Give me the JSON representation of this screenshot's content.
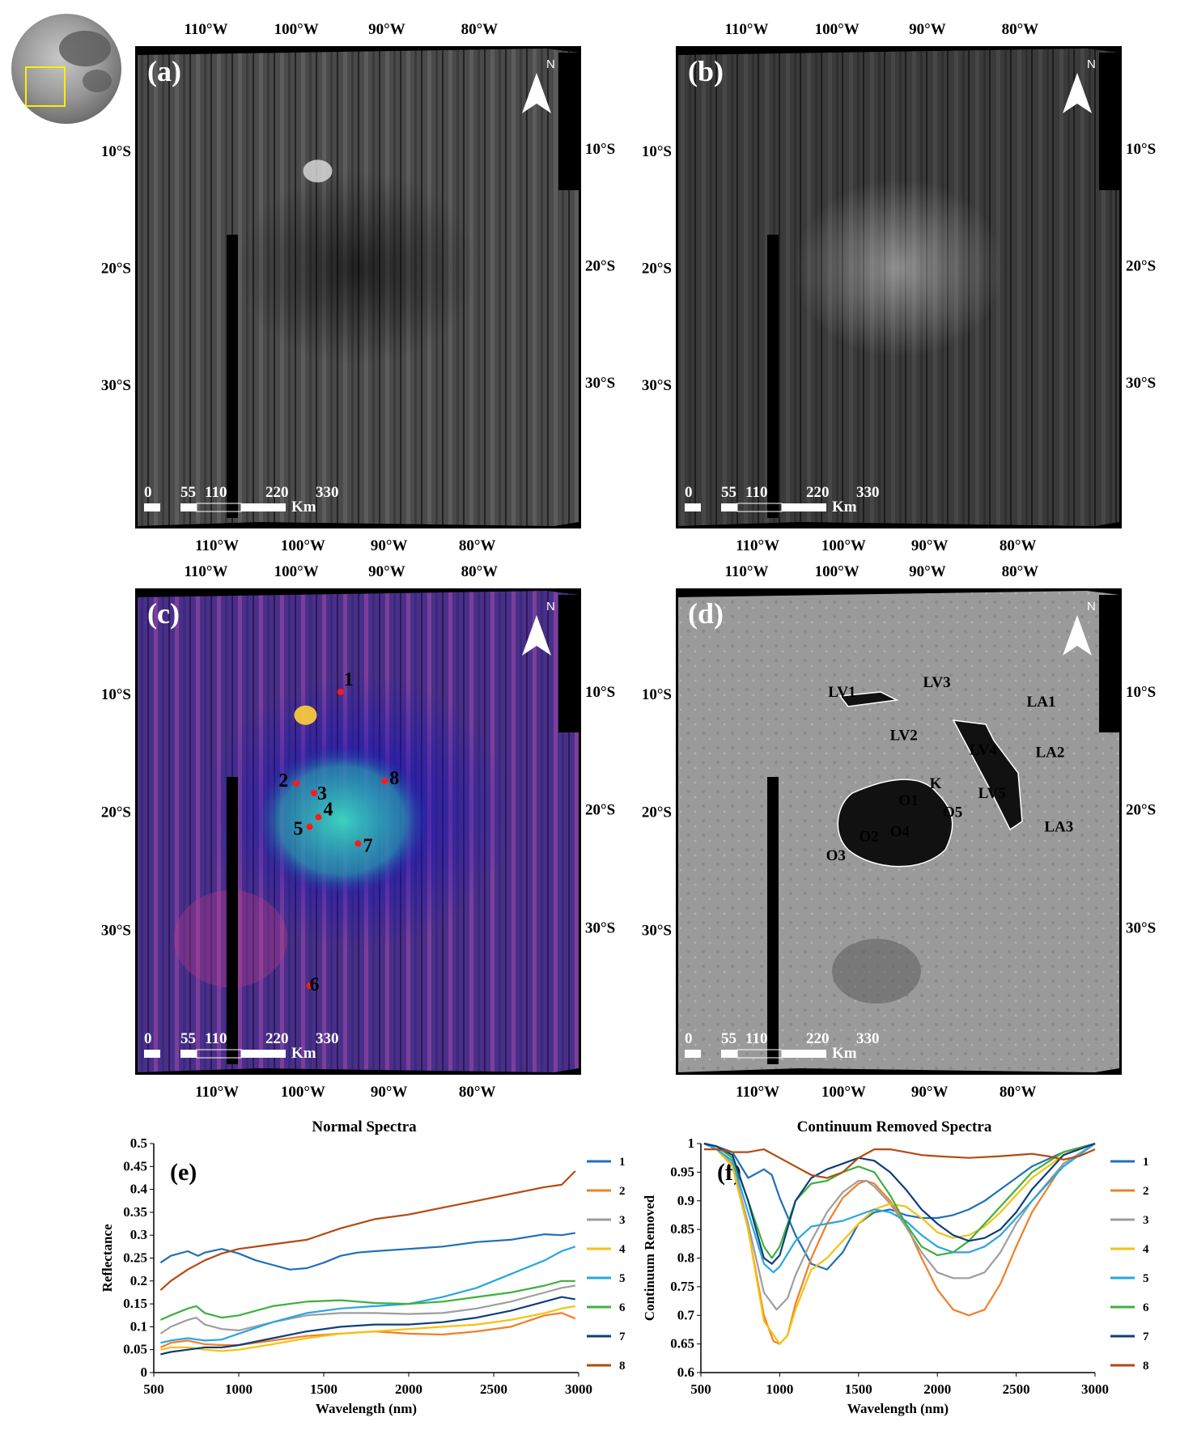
{
  "locator": {
    "colors": {
      "box": "#ffee00"
    }
  },
  "maps": [
    {
      "letter": "(a)",
      "style": "gray-dark",
      "top_ticks": [
        "110°W",
        "100°W",
        "90°W",
        "80°W"
      ],
      "bottom_ticks": [
        "110°W",
        "100°W",
        "90°W",
        "80°W"
      ],
      "lat_ticks_left": [
        "10°S",
        "20°S",
        "30°S"
      ],
      "lat_ticks_right": [
        "10°S",
        "20°S",
        "30°S"
      ],
      "north": "N",
      "scale": {
        "values": [
          "0",
          "55",
          "110",
          "220",
          "330"
        ],
        "unit": "Km"
      }
    },
    {
      "letter": "(b)",
      "style": "gray-dim",
      "top_ticks": [
        "110°W",
        "100°W",
        "90°W",
        "80°W"
      ],
      "bottom_ticks": [
        "110°W",
        "100°W",
        "90°W",
        "80°W"
      ],
      "lat_ticks_left": [
        "10°S",
        "20°S",
        "30°S"
      ],
      "lat_ticks_right": [
        "10°S",
        "20°S",
        "30°S"
      ],
      "north": "N",
      "scale": {
        "values": [
          "0",
          "55",
          "110",
          "220",
          "330"
        ],
        "unit": "Km"
      }
    },
    {
      "letter": "(c)",
      "style": "false-color",
      "top_ticks": [
        "110°W",
        "100°W",
        "90°W",
        "80°W"
      ],
      "bottom_ticks": [
        "110°W",
        "100°W",
        "90°W",
        "80°W"
      ],
      "lat_ticks_left": [
        "10°S",
        "20°S",
        "30°S"
      ],
      "lat_ticks_right": [
        "10°S",
        "20°S",
        "30°S"
      ],
      "north": "N",
      "scale": {
        "values": [
          "0",
          "55",
          "110",
          "220",
          "330"
        ],
        "unit": "Km"
      },
      "points": [
        "1",
        "2",
        "3",
        "4",
        "5",
        "6",
        "7",
        "8"
      ]
    },
    {
      "letter": "(d)",
      "style": "gray-light",
      "top_ticks": [
        "110°W",
        "100°W",
        "90°W",
        "80°W"
      ],
      "bottom_ticks": [
        "110°W",
        "100°W",
        "90°W",
        "80°W"
      ],
      "lat_ticks_left": [
        "10°S",
        "20°S",
        "30°S"
      ],
      "lat_ticks_right": [
        "10°S",
        "20°S",
        "30°S"
      ],
      "north": "N",
      "scale": {
        "values": [
          "0",
          "55",
          "110",
          "220",
          "330"
        ],
        "unit": "Km"
      },
      "labels": [
        "LV1",
        "LV3",
        "LA1",
        "LV2",
        "LV4",
        "LA2",
        "K",
        "LV5",
        "O1",
        "O5",
        "O2",
        "O4",
        "LA3",
        "O3"
      ]
    }
  ],
  "chart_data": [
    {
      "type": "line",
      "title": "Normal Spectra",
      "panel_label": "(e)",
      "xlabel": "Wavelength (nm)",
      "ylabel": "Reflectance",
      "xlim": [
        500,
        3000
      ],
      "ylim": [
        0,
        0.5
      ],
      "xticks": [
        500,
        1000,
        1500,
        2000,
        2500,
        3000
      ],
      "yticks": [
        0,
        0.05,
        0.1,
        0.15,
        0.2,
        0.25,
        0.3,
        0.35,
        0.4,
        0.45,
        0.5
      ],
      "ytick_labels": [
        "0",
        "0.05",
        "0.1",
        "0.15",
        "0.2",
        "0.25",
        "0.3",
        "0.35",
        "0.4",
        "0.45",
        "0.5"
      ],
      "legend_position": "right",
      "series": [
        {
          "name": "1",
          "color": "#1f6fb8",
          "x": [
            540,
            600,
            700,
            760,
            800,
            900,
            1000,
            1100,
            1200,
            1300,
            1400,
            1500,
            1600,
            1700,
            1800,
            2000,
            2200,
            2400,
            2600,
            2800,
            2900,
            2980
          ],
          "y": [
            0.24,
            0.255,
            0.265,
            0.255,
            0.262,
            0.27,
            0.26,
            0.245,
            0.235,
            0.225,
            0.228,
            0.24,
            0.255,
            0.262,
            0.265,
            0.27,
            0.275,
            0.285,
            0.29,
            0.302,
            0.3,
            0.305
          ]
        },
        {
          "name": "2",
          "color": "#f07f2a",
          "x": [
            540,
            600,
            700,
            800,
            900,
            1000,
            1200,
            1400,
            1600,
            1800,
            2000,
            2200,
            2400,
            2600,
            2800,
            2900,
            2980
          ],
          "y": [
            0.055,
            0.065,
            0.07,
            0.062,
            0.06,
            0.06,
            0.07,
            0.08,
            0.085,
            0.09,
            0.085,
            0.083,
            0.09,
            0.1,
            0.125,
            0.13,
            0.118
          ]
        },
        {
          "name": "3",
          "color": "#9e9e9e",
          "x": [
            540,
            600,
            700,
            750,
            800,
            900,
            1000,
            1200,
            1400,
            1600,
            1800,
            2000,
            2200,
            2400,
            2600,
            2800,
            2900,
            2980
          ],
          "y": [
            0.085,
            0.1,
            0.115,
            0.12,
            0.105,
            0.095,
            0.092,
            0.11,
            0.125,
            0.13,
            0.13,
            0.128,
            0.13,
            0.14,
            0.155,
            0.175,
            0.185,
            0.19
          ]
        },
        {
          "name": "4",
          "color": "#f5c211",
          "x": [
            540,
            600,
            700,
            800,
            900,
            1000,
            1200,
            1400,
            1600,
            1800,
            2000,
            2200,
            2400,
            2600,
            2800,
            2900,
            2980
          ],
          "y": [
            0.05,
            0.055,
            0.055,
            0.05,
            0.047,
            0.05,
            0.062,
            0.075,
            0.085,
            0.09,
            0.095,
            0.1,
            0.105,
            0.115,
            0.13,
            0.14,
            0.145
          ]
        },
        {
          "name": "5",
          "color": "#27a7df",
          "x": [
            540,
            600,
            700,
            800,
            900,
            1000,
            1200,
            1400,
            1600,
            1800,
            2000,
            2200,
            2400,
            2600,
            2800,
            2900,
            2980
          ],
          "y": [
            0.065,
            0.07,
            0.075,
            0.07,
            0.072,
            0.085,
            0.11,
            0.13,
            0.14,
            0.145,
            0.15,
            0.165,
            0.185,
            0.215,
            0.245,
            0.265,
            0.275
          ]
        },
        {
          "name": "6",
          "color": "#3fb03f",
          "x": [
            540,
            600,
            700,
            750,
            800,
            900,
            1000,
            1200,
            1400,
            1600,
            1800,
            2000,
            2200,
            2400,
            2600,
            2800,
            2900,
            2980
          ],
          "y": [
            0.115,
            0.125,
            0.14,
            0.145,
            0.13,
            0.12,
            0.125,
            0.145,
            0.155,
            0.158,
            0.152,
            0.15,
            0.155,
            0.165,
            0.175,
            0.19,
            0.2,
            0.2
          ]
        },
        {
          "name": "7",
          "color": "#0f3f7a",
          "x": [
            540,
            600,
            700,
            800,
            900,
            1000,
            1200,
            1400,
            1600,
            1800,
            2000,
            2200,
            2400,
            2600,
            2800,
            2900,
            2980
          ],
          "y": [
            0.04,
            0.045,
            0.05,
            0.055,
            0.055,
            0.06,
            0.075,
            0.09,
            0.1,
            0.105,
            0.105,
            0.11,
            0.12,
            0.135,
            0.155,
            0.165,
            0.16
          ]
        },
        {
          "name": "8",
          "color": "#b24a14",
          "x": [
            540,
            600,
            700,
            800,
            900,
            1000,
            1200,
            1400,
            1600,
            1800,
            2000,
            2200,
            2400,
            2600,
            2800,
            2900,
            2980
          ],
          "y": [
            0.18,
            0.2,
            0.225,
            0.245,
            0.26,
            0.27,
            0.28,
            0.29,
            0.315,
            0.335,
            0.345,
            0.36,
            0.375,
            0.39,
            0.405,
            0.41,
            0.44
          ]
        }
      ]
    },
    {
      "type": "line",
      "title": "Continuum Removed Spectra",
      "panel_label": "(f)",
      "xlabel": "Wavelength (nm)",
      "ylabel": "Continuum Removed",
      "xlim": [
        500,
        3000
      ],
      "ylim": [
        0.6,
        1
      ],
      "xticks": [
        500,
        1000,
        1500,
        2000,
        2500,
        3000
      ],
      "yticks": [
        0.6,
        0.65,
        0.7,
        0.75,
        0.8,
        0.85,
        0.9,
        0.95,
        1
      ],
      "ytick_labels": [
        "0.6",
        "0.65",
        "0.7",
        "0.75",
        "0.8",
        "0.85",
        "0.9",
        "0.95",
        "1"
      ],
      "legend_position": "right",
      "series": [
        {
          "name": "1",
          "color": "#1f6fb8",
          "x": [
            520,
            600,
            700,
            800,
            900,
            950,
            1000,
            1100,
            1200,
            1300,
            1400,
            1500,
            1600,
            1700,
            1800,
            1900,
            2000,
            2100,
            2200,
            2300,
            2400,
            2500,
            2600,
            2800,
            3000
          ],
          "y": [
            1,
            0.995,
            0.985,
            0.94,
            0.955,
            0.945,
            0.905,
            0.84,
            0.79,
            0.78,
            0.81,
            0.86,
            0.88,
            0.885,
            0.875,
            0.87,
            0.87,
            0.875,
            0.885,
            0.9,
            0.92,
            0.94,
            0.96,
            0.985,
            1
          ]
        },
        {
          "name": "2",
          "color": "#f07f2a",
          "x": [
            520,
            600,
            700,
            800,
            900,
            960,
            1000,
            1050,
            1100,
            1200,
            1300,
            1400,
            1500,
            1550,
            1600,
            1700,
            1800,
            1900,
            2000,
            2100,
            2200,
            2300,
            2400,
            2500,
            2600,
            2800,
            3000
          ],
          "y": [
            1,
            0.99,
            0.96,
            0.85,
            0.7,
            0.655,
            0.65,
            0.665,
            0.72,
            0.8,
            0.86,
            0.905,
            0.93,
            0.935,
            0.93,
            0.9,
            0.86,
            0.8,
            0.745,
            0.71,
            0.7,
            0.71,
            0.755,
            0.82,
            0.88,
            0.965,
            1
          ]
        },
        {
          "name": "3",
          "color": "#9e9e9e",
          "x": [
            520,
            600,
            700,
            800,
            900,
            980,
            1050,
            1100,
            1200,
            1300,
            1400,
            1500,
            1550,
            1600,
            1700,
            1800,
            1900,
            2000,
            2100,
            2200,
            2300,
            2400,
            2500,
            2600,
            2800,
            3000
          ],
          "y": [
            1,
            0.99,
            0.965,
            0.86,
            0.74,
            0.71,
            0.73,
            0.77,
            0.83,
            0.88,
            0.915,
            0.935,
            0.935,
            0.925,
            0.895,
            0.855,
            0.81,
            0.775,
            0.765,
            0.765,
            0.775,
            0.81,
            0.86,
            0.9,
            0.965,
            1
          ]
        },
        {
          "name": "4",
          "color": "#f5c211",
          "x": [
            520,
            600,
            700,
            800,
            900,
            1000,
            1050,
            1100,
            1200,
            1300,
            1400,
            1500,
            1600,
            1700,
            1800,
            1900,
            2000,
            2100,
            2200,
            2300,
            2400,
            2500,
            2600,
            2800,
            3000
          ],
          "y": [
            1,
            0.99,
            0.96,
            0.85,
            0.69,
            0.65,
            0.665,
            0.71,
            0.78,
            0.8,
            0.83,
            0.86,
            0.885,
            0.895,
            0.89,
            0.87,
            0.845,
            0.835,
            0.84,
            0.855,
            0.88,
            0.91,
            0.94,
            0.98,
            1
          ]
        },
        {
          "name": "5",
          "color": "#27a7df",
          "x": [
            520,
            600,
            700,
            800,
            900,
            960,
            1000,
            1100,
            1200,
            1300,
            1400,
            1500,
            1600,
            1700,
            1800,
            1900,
            2000,
            2100,
            2200,
            2300,
            2400,
            2500,
            2600,
            2800,
            3000
          ],
          "y": [
            1,
            0.99,
            0.97,
            0.88,
            0.79,
            0.775,
            0.785,
            0.83,
            0.855,
            0.86,
            0.865,
            0.875,
            0.885,
            0.88,
            0.865,
            0.84,
            0.82,
            0.81,
            0.81,
            0.82,
            0.84,
            0.87,
            0.9,
            0.96,
            1
          ]
        },
        {
          "name": "6",
          "color": "#3fb03f",
          "x": [
            520,
            600,
            700,
            800,
            900,
            950,
            1000,
            1100,
            1200,
            1300,
            1400,
            1500,
            1600,
            1700,
            1800,
            1900,
            2000,
            2100,
            2200,
            2300,
            2400,
            2500,
            2600,
            2800,
            3000
          ],
          "y": [
            1,
            0.995,
            0.975,
            0.9,
            0.82,
            0.8,
            0.82,
            0.9,
            0.93,
            0.935,
            0.95,
            0.96,
            0.95,
            0.91,
            0.86,
            0.82,
            0.805,
            0.81,
            0.83,
            0.86,
            0.89,
            0.92,
            0.95,
            0.985,
            1
          ]
        },
        {
          "name": "7",
          "color": "#0f3f7a",
          "x": [
            520,
            600,
            700,
            800,
            900,
            950,
            1000,
            1100,
            1200,
            1300,
            1400,
            1500,
            1600,
            1700,
            1800,
            1900,
            2000,
            2100,
            2200,
            2300,
            2400,
            2500,
            2600,
            2800,
            3000
          ],
          "y": [
            1,
            0.995,
            0.98,
            0.9,
            0.8,
            0.79,
            0.805,
            0.9,
            0.94,
            0.955,
            0.965,
            0.975,
            0.97,
            0.95,
            0.92,
            0.885,
            0.86,
            0.84,
            0.83,
            0.835,
            0.85,
            0.88,
            0.92,
            0.98,
            1
          ]
        },
        {
          "name": "8",
          "color": "#b24a14",
          "x": [
            520,
            600,
            700,
            800,
            900,
            1000,
            1100,
            1200,
            1300,
            1400,
            1500,
            1600,
            1700,
            1800,
            1900,
            2000,
            2200,
            2400,
            2600,
            2700,
            2800,
            2900,
            3000
          ],
          "y": [
            0.99,
            0.99,
            0.985,
            0.985,
            0.99,
            0.975,
            0.96,
            0.945,
            0.94,
            0.95,
            0.975,
            0.99,
            0.99,
            0.985,
            0.98,
            0.978,
            0.975,
            0.978,
            0.982,
            0.978,
            0.972,
            0.978,
            0.99
          ]
        }
      ]
    }
  ]
}
